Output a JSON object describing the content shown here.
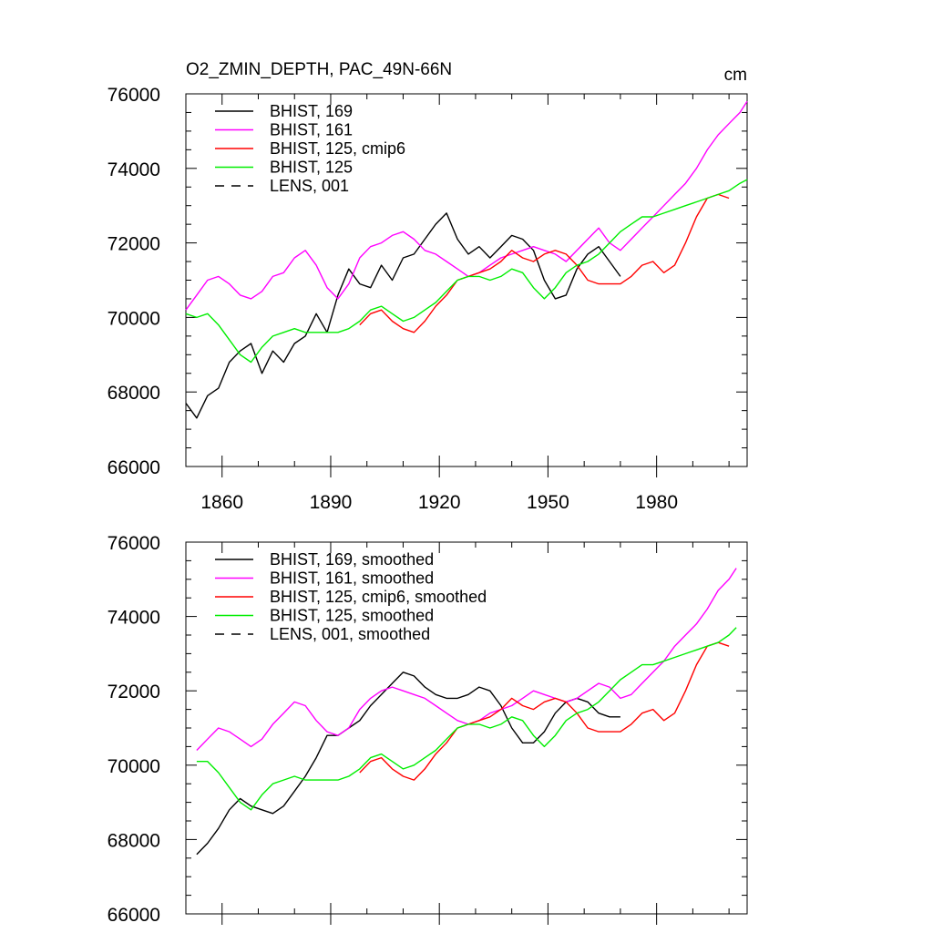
{
  "page": {
    "background": "#ffffff"
  },
  "chart_data": [
    {
      "type": "line",
      "title": "O2_ZMIN_DEPTH, PAC_49N-66N",
      "units": "cm",
      "xlabel": "",
      "ylabel": "",
      "xlim": [
        1850,
        2005
      ],
      "ylim": [
        66000,
        76000
      ],
      "xticks": [
        1860,
        1890,
        1920,
        1950,
        1980
      ],
      "xtick_labels": [
        "1860",
        "1890",
        "1920",
        "1950",
        "1980"
      ],
      "yticks": [
        66000,
        68000,
        70000,
        72000,
        74000,
        76000
      ],
      "ytick_labels": [
        "66000",
        "68000",
        "70000",
        "72000",
        "74000",
        "76000"
      ],
      "grid": false,
      "legend_position": "top-left",
      "series": [
        {
          "name": "BHIST, 169",
          "color": "#000000",
          "dash": "solid",
          "x": [
            1850,
            1853,
            1856,
            1859,
            1862,
            1865,
            1868,
            1871,
            1874,
            1877,
            1880,
            1883,
            1886,
            1889,
            1892,
            1895,
            1898,
            1901,
            1904,
            1907,
            1910,
            1913,
            1916,
            1919,
            1922,
            1925,
            1928,
            1931,
            1934,
            1937,
            1940,
            1943,
            1946,
            1949,
            1952,
            1955,
            1958,
            1961,
            1964,
            1967,
            1970
          ],
          "values": [
            67700,
            67300,
            67900,
            68100,
            68800,
            69100,
            69300,
            68500,
            69100,
            68800,
            69300,
            69500,
            70100,
            69600,
            70600,
            71300,
            70900,
            70800,
            71400,
            71000,
            71600,
            71700,
            72100,
            72500,
            72800,
            72100,
            71700,
            71900,
            71600,
            71900,
            72200,
            72100,
            71800,
            71000,
            70500,
            70600,
            71300,
            71700,
            71900,
            71500,
            71100
          ]
        },
        {
          "name": "BHIST, 161",
          "color": "#ff00ff",
          "dash": "solid",
          "x": [
            1850,
            1853,
            1856,
            1859,
            1862,
            1865,
            1868,
            1871,
            1874,
            1877,
            1880,
            1883,
            1886,
            1889,
            1892,
            1895,
            1898,
            1901,
            1904,
            1907,
            1910,
            1913,
            1916,
            1919,
            1922,
            1925,
            1928,
            1931,
            1934,
            1937,
            1940,
            1943,
            1946,
            1949,
            1952,
            1955,
            1958,
            1961,
            1964,
            1967,
            1970,
            1973,
            1976,
            1979,
            1982,
            1985,
            1988,
            1991,
            1994,
            1997,
            2000,
            2003,
            2005
          ],
          "values": [
            70200,
            70600,
            71000,
            71100,
            70900,
            70600,
            70500,
            70700,
            71100,
            71200,
            71600,
            71800,
            71400,
            70800,
            70500,
            70900,
            71600,
            71900,
            72000,
            72200,
            72300,
            72100,
            71800,
            71700,
            71500,
            71300,
            71100,
            71200,
            71400,
            71600,
            71700,
            71800,
            71900,
            71800,
            71700,
            71500,
            71800,
            72100,
            72400,
            72000,
            71800,
            72100,
            72400,
            72700,
            73000,
            73300,
            73600,
            74000,
            74500,
            74900,
            75200,
            75500,
            75800
          ]
        },
        {
          "name": "BHIST, 125, cmip6",
          "color": "#ff0000",
          "dash": "solid",
          "x": [
            1898,
            1901,
            1904,
            1907,
            1910,
            1913,
            1916,
            1919,
            1922,
            1925,
            1928,
            1931,
            1934,
            1937,
            1940,
            1943,
            1946,
            1949,
            1952,
            1955,
            1958,
            1961,
            1964,
            1967,
            1970,
            1973,
            1976,
            1979,
            1982,
            1985,
            1988,
            1991,
            1994,
            1997,
            2000
          ],
          "values": [
            69800,
            70100,
            70200,
            69900,
            69700,
            69600,
            69900,
            70300,
            70600,
            71000,
            71100,
            71200,
            71300,
            71500,
            71800,
            71600,
            71500,
            71700,
            71800,
            71700,
            71400,
            71000,
            70900,
            70900,
            70900,
            71100,
            71400,
            71500,
            71200,
            71400,
            72000,
            72700,
            73200,
            73300,
            73200
          ]
        },
        {
          "name": "BHIST, 125",
          "color": "#00ee00",
          "dash": "solid",
          "x": [
            1850,
            1853,
            1856,
            1859,
            1862,
            1865,
            1868,
            1871,
            1874,
            1877,
            1880,
            1883,
            1886,
            1889,
            1892,
            1895,
            1898,
            1901,
            1904,
            1907,
            1910,
            1913,
            1916,
            1919,
            1922,
            1925,
            1928,
            1931,
            1934,
            1937,
            1940,
            1943,
            1946,
            1949,
            1952,
            1955,
            1958,
            1961,
            1964,
            1967,
            1970,
            1973,
            1976,
            1979,
            1982,
            1985,
            1988,
            1991,
            1994,
            1997,
            2000,
            2003,
            2005
          ],
          "values": [
            70100,
            70000,
            70100,
            69800,
            69400,
            69000,
            68800,
            69200,
            69500,
            69600,
            69700,
            69600,
            69600,
            69600,
            69600,
            69700,
            69900,
            70200,
            70300,
            70100,
            69900,
            70000,
            70200,
            70400,
            70700,
            71000,
            71100,
            71100,
            71000,
            71100,
            71300,
            71200,
            70800,
            70500,
            70800,
            71200,
            71400,
            71500,
            71700,
            72000,
            72300,
            72500,
            72700,
            72700,
            72800,
            72900,
            73000,
            73100,
            73200,
            73300,
            73400,
            73600,
            73700
          ]
        },
        {
          "name": "LENS, 001",
          "color": "#000000",
          "dash": "dashed",
          "x": [],
          "values": []
        }
      ]
    },
    {
      "type": "line",
      "title": "",
      "xlabel": "",
      "ylabel": "",
      "xlim": [
        1850,
        2005
      ],
      "ylim": [
        66000,
        76000
      ],
      "xticks": [
        1860,
        1890,
        1920,
        1950,
        1980
      ],
      "xtick_labels": [],
      "yticks": [
        66000,
        68000,
        70000,
        72000,
        74000,
        76000
      ],
      "ytick_labels": [
        "66000",
        "68000",
        "70000",
        "72000",
        "74000",
        "76000"
      ],
      "grid": false,
      "legend_position": "top-left",
      "series": [
        {
          "name": "BHIST, 169, smoothed",
          "color": "#000000",
          "dash": "solid",
          "x": [
            1853,
            1856,
            1859,
            1862,
            1865,
            1868,
            1871,
            1874,
            1877,
            1880,
            1883,
            1886,
            1889,
            1892,
            1895,
            1898,
            1901,
            1904,
            1907,
            1910,
            1913,
            1916,
            1919,
            1922,
            1925,
            1928,
            1931,
            1934,
            1937,
            1940,
            1943,
            1946,
            1949,
            1952,
            1955,
            1958,
            1961,
            1964,
            1967,
            1970
          ],
          "values": [
            67600,
            67900,
            68300,
            68800,
            69100,
            68900,
            68800,
            68700,
            68900,
            69300,
            69700,
            70200,
            70800,
            70800,
            71000,
            71200,
            71600,
            71900,
            72200,
            72500,
            72400,
            72100,
            71900,
            71800,
            71800,
            71900,
            72100,
            72000,
            71600,
            71000,
            70600,
            70600,
            70900,
            71400,
            71700,
            71800,
            71700,
            71400,
            71300,
            71300
          ]
        },
        {
          "name": "BHIST, 161, smoothed",
          "color": "#ff00ff",
          "dash": "solid",
          "x": [
            1853,
            1856,
            1859,
            1862,
            1865,
            1868,
            1871,
            1874,
            1877,
            1880,
            1883,
            1886,
            1889,
            1892,
            1895,
            1898,
            1901,
            1904,
            1907,
            1910,
            1913,
            1916,
            1919,
            1922,
            1925,
            1928,
            1931,
            1934,
            1937,
            1940,
            1943,
            1946,
            1949,
            1952,
            1955,
            1958,
            1961,
            1964,
            1967,
            1970,
            1973,
            1976,
            1979,
            1982,
            1985,
            1988,
            1991,
            1994,
            1997,
            2000,
            2002
          ],
          "values": [
            70400,
            70700,
            71000,
            70900,
            70700,
            70500,
            70700,
            71100,
            71400,
            71700,
            71600,
            71200,
            70900,
            70800,
            71000,
            71500,
            71800,
            72000,
            72100,
            72000,
            71900,
            71800,
            71600,
            71400,
            71200,
            71100,
            71200,
            71400,
            71500,
            71600,
            71800,
            72000,
            71900,
            71800,
            71700,
            71800,
            72000,
            72200,
            72100,
            71800,
            71900,
            72200,
            72500,
            72800,
            73200,
            73500,
            73800,
            74200,
            74700,
            75000,
            75300
          ]
        },
        {
          "name": "BHIST, 125, cmip6, smoothed",
          "color": "#ff0000",
          "dash": "solid",
          "x": [
            1898,
            1901,
            1904,
            1907,
            1910,
            1913,
            1916,
            1919,
            1922,
            1925,
            1928,
            1931,
            1934,
            1937,
            1940,
            1943,
            1946,
            1949,
            1952,
            1955,
            1958,
            1961,
            1964,
            1967,
            1970,
            1973,
            1976,
            1979,
            1982,
            1985,
            1988,
            1991,
            1994,
            1997,
            2000
          ],
          "values": [
            69800,
            70100,
            70200,
            69900,
            69700,
            69600,
            69900,
            70300,
            70600,
            71000,
            71100,
            71200,
            71300,
            71500,
            71800,
            71600,
            71500,
            71700,
            71800,
            71700,
            71400,
            71000,
            70900,
            70900,
            70900,
            71100,
            71400,
            71500,
            71200,
            71400,
            72000,
            72700,
            73200,
            73300,
            73200
          ]
        },
        {
          "name": "BHIST, 125, smoothed",
          "color": "#00ee00",
          "dash": "solid",
          "x": [
            1853,
            1856,
            1859,
            1862,
            1865,
            1868,
            1871,
            1874,
            1877,
            1880,
            1883,
            1886,
            1889,
            1892,
            1895,
            1898,
            1901,
            1904,
            1907,
            1910,
            1913,
            1916,
            1919,
            1922,
            1925,
            1928,
            1931,
            1934,
            1937,
            1940,
            1943,
            1946,
            1949,
            1952,
            1955,
            1958,
            1961,
            1964,
            1967,
            1970,
            1973,
            1976,
            1979,
            1982,
            1985,
            1988,
            1991,
            1994,
            1997,
            2000,
            2002
          ],
          "values": [
            70100,
            70100,
            69800,
            69400,
            69000,
            68800,
            69200,
            69500,
            69600,
            69700,
            69600,
            69600,
            69600,
            69600,
            69700,
            69900,
            70200,
            70300,
            70100,
            69900,
            70000,
            70200,
            70400,
            70700,
            71000,
            71100,
            71100,
            71000,
            71100,
            71300,
            71200,
            70800,
            70500,
            70800,
            71200,
            71400,
            71500,
            71700,
            72000,
            72300,
            72500,
            72700,
            72700,
            72800,
            72900,
            73000,
            73100,
            73200,
            73300,
            73500,
            73700
          ]
        },
        {
          "name": "LENS, 001, smoothed",
          "color": "#000000",
          "dash": "dashed",
          "x": [],
          "values": []
        }
      ]
    }
  ]
}
